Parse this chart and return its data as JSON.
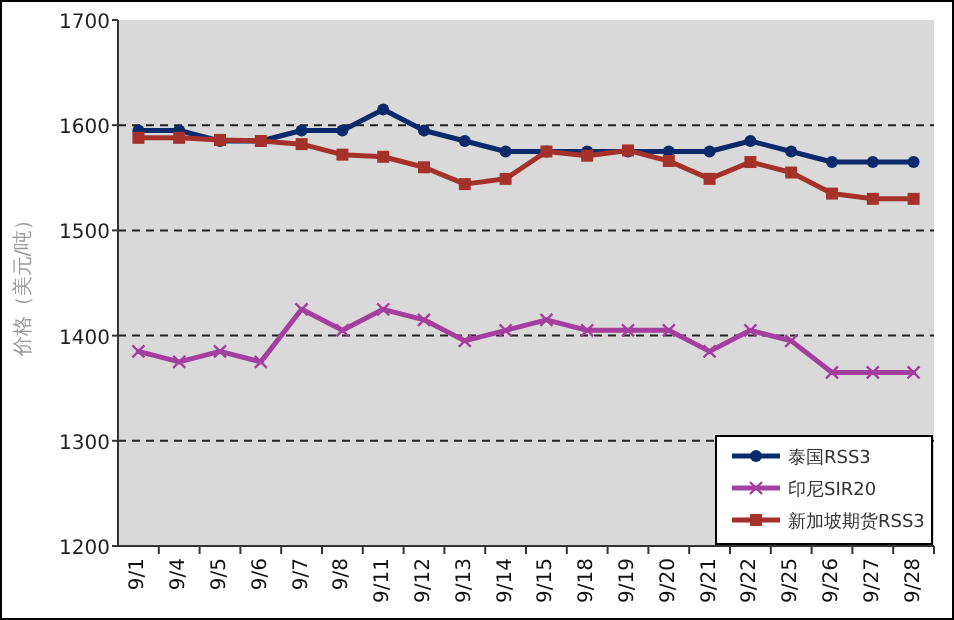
{
  "chart_data": {
    "type": "line",
    "ylabel": "价格（美元/吨）",
    "categories": [
      "9/1",
      "9/4",
      "9/5",
      "9/6",
      "9/7",
      "9/8",
      "9/11",
      "9/12",
      "9/13",
      "9/14",
      "9/15",
      "9/18",
      "9/19",
      "9/20",
      "9/21",
      "9/22",
      "9/25",
      "9/26",
      "9/27",
      "9/28"
    ],
    "series": [
      {
        "name": "泰国RSS3",
        "color": "#0b2a6b",
        "marker": "circle",
        "values": [
          1595,
          1595,
          1585,
          1585,
          1595,
          1595,
          1615,
          1595,
          1585,
          1575,
          1575,
          1575,
          1575,
          1575,
          1575,
          1585,
          1575,
          1565,
          1565,
          1565
        ]
      },
      {
        "name": "印尼SIR20",
        "color": "#a43f9f",
        "marker": "cross",
        "values": [
          1385,
          1375,
          1385,
          1375,
          1425,
          1405,
          1425,
          1415,
          1395,
          1405,
          1415,
          1405,
          1405,
          1405,
          1385,
          1405,
          1395,
          1365,
          1365,
          1365
        ]
      },
      {
        "name": "新加坡期货RSS3",
        "color": "#a5322a",
        "marker": "square",
        "values": [
          1588,
          1588,
          1586,
          1585,
          1582,
          1572,
          1570,
          1560,
          1544,
          1549,
          1575,
          1571,
          1576,
          1566,
          1549,
          1565,
          1555,
          1535,
          1530,
          1530
        ]
      }
    ],
    "ylim": [
      1200,
      1700
    ],
    "yticks": [
      1200,
      1300,
      1400,
      1500,
      1600,
      1700
    ],
    "grid": "y",
    "line_style": "solid",
    "legend": "bottom right"
  }
}
